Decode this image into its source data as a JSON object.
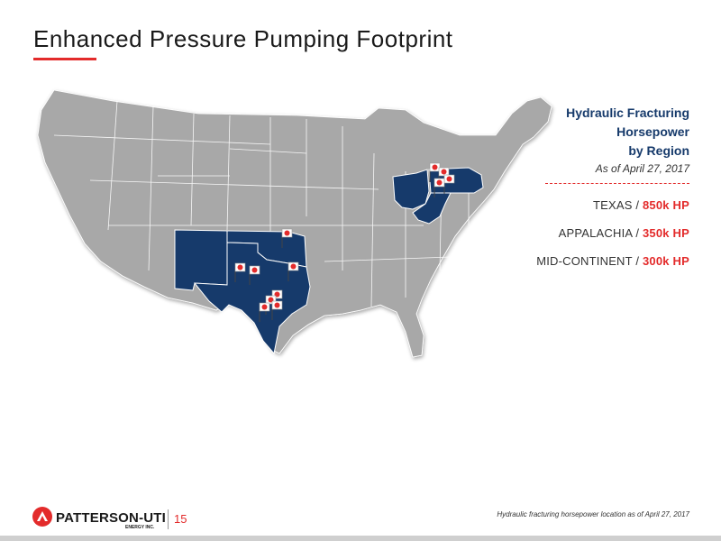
{
  "title": "Enhanced Pressure Pumping Footprint",
  "colors": {
    "accent": "#e32b2b",
    "highlight_state": "#163a6b",
    "base_state": "#a8a8a8"
  },
  "legend": {
    "heading_line1": "Hydraulic Fracturing",
    "heading_line2": "Horsepower",
    "heading_line3": "by Region",
    "date": "As of April 27, 2017",
    "regions": [
      {
        "name": "TEXAS / ",
        "value": "850k HP"
      },
      {
        "name": "APPALACHIA / ",
        "value": "350k HP"
      },
      {
        "name": "MID-CONTINENT / ",
        "value": "300k HP"
      }
    ]
  },
  "map": {
    "highlighted_states": [
      "Texas",
      "New Mexico",
      "Oklahoma",
      "Ohio",
      "Pennsylvania",
      "West Virginia"
    ],
    "marker_icon": "company-flag-icon"
  },
  "footer": {
    "logo_text": "PATTERSON-UTI",
    "logo_sub": "ENERGY INC.",
    "page_number": "15",
    "footnote": "Hydraulic fracturing horsepower location as of April 27, 2017"
  }
}
